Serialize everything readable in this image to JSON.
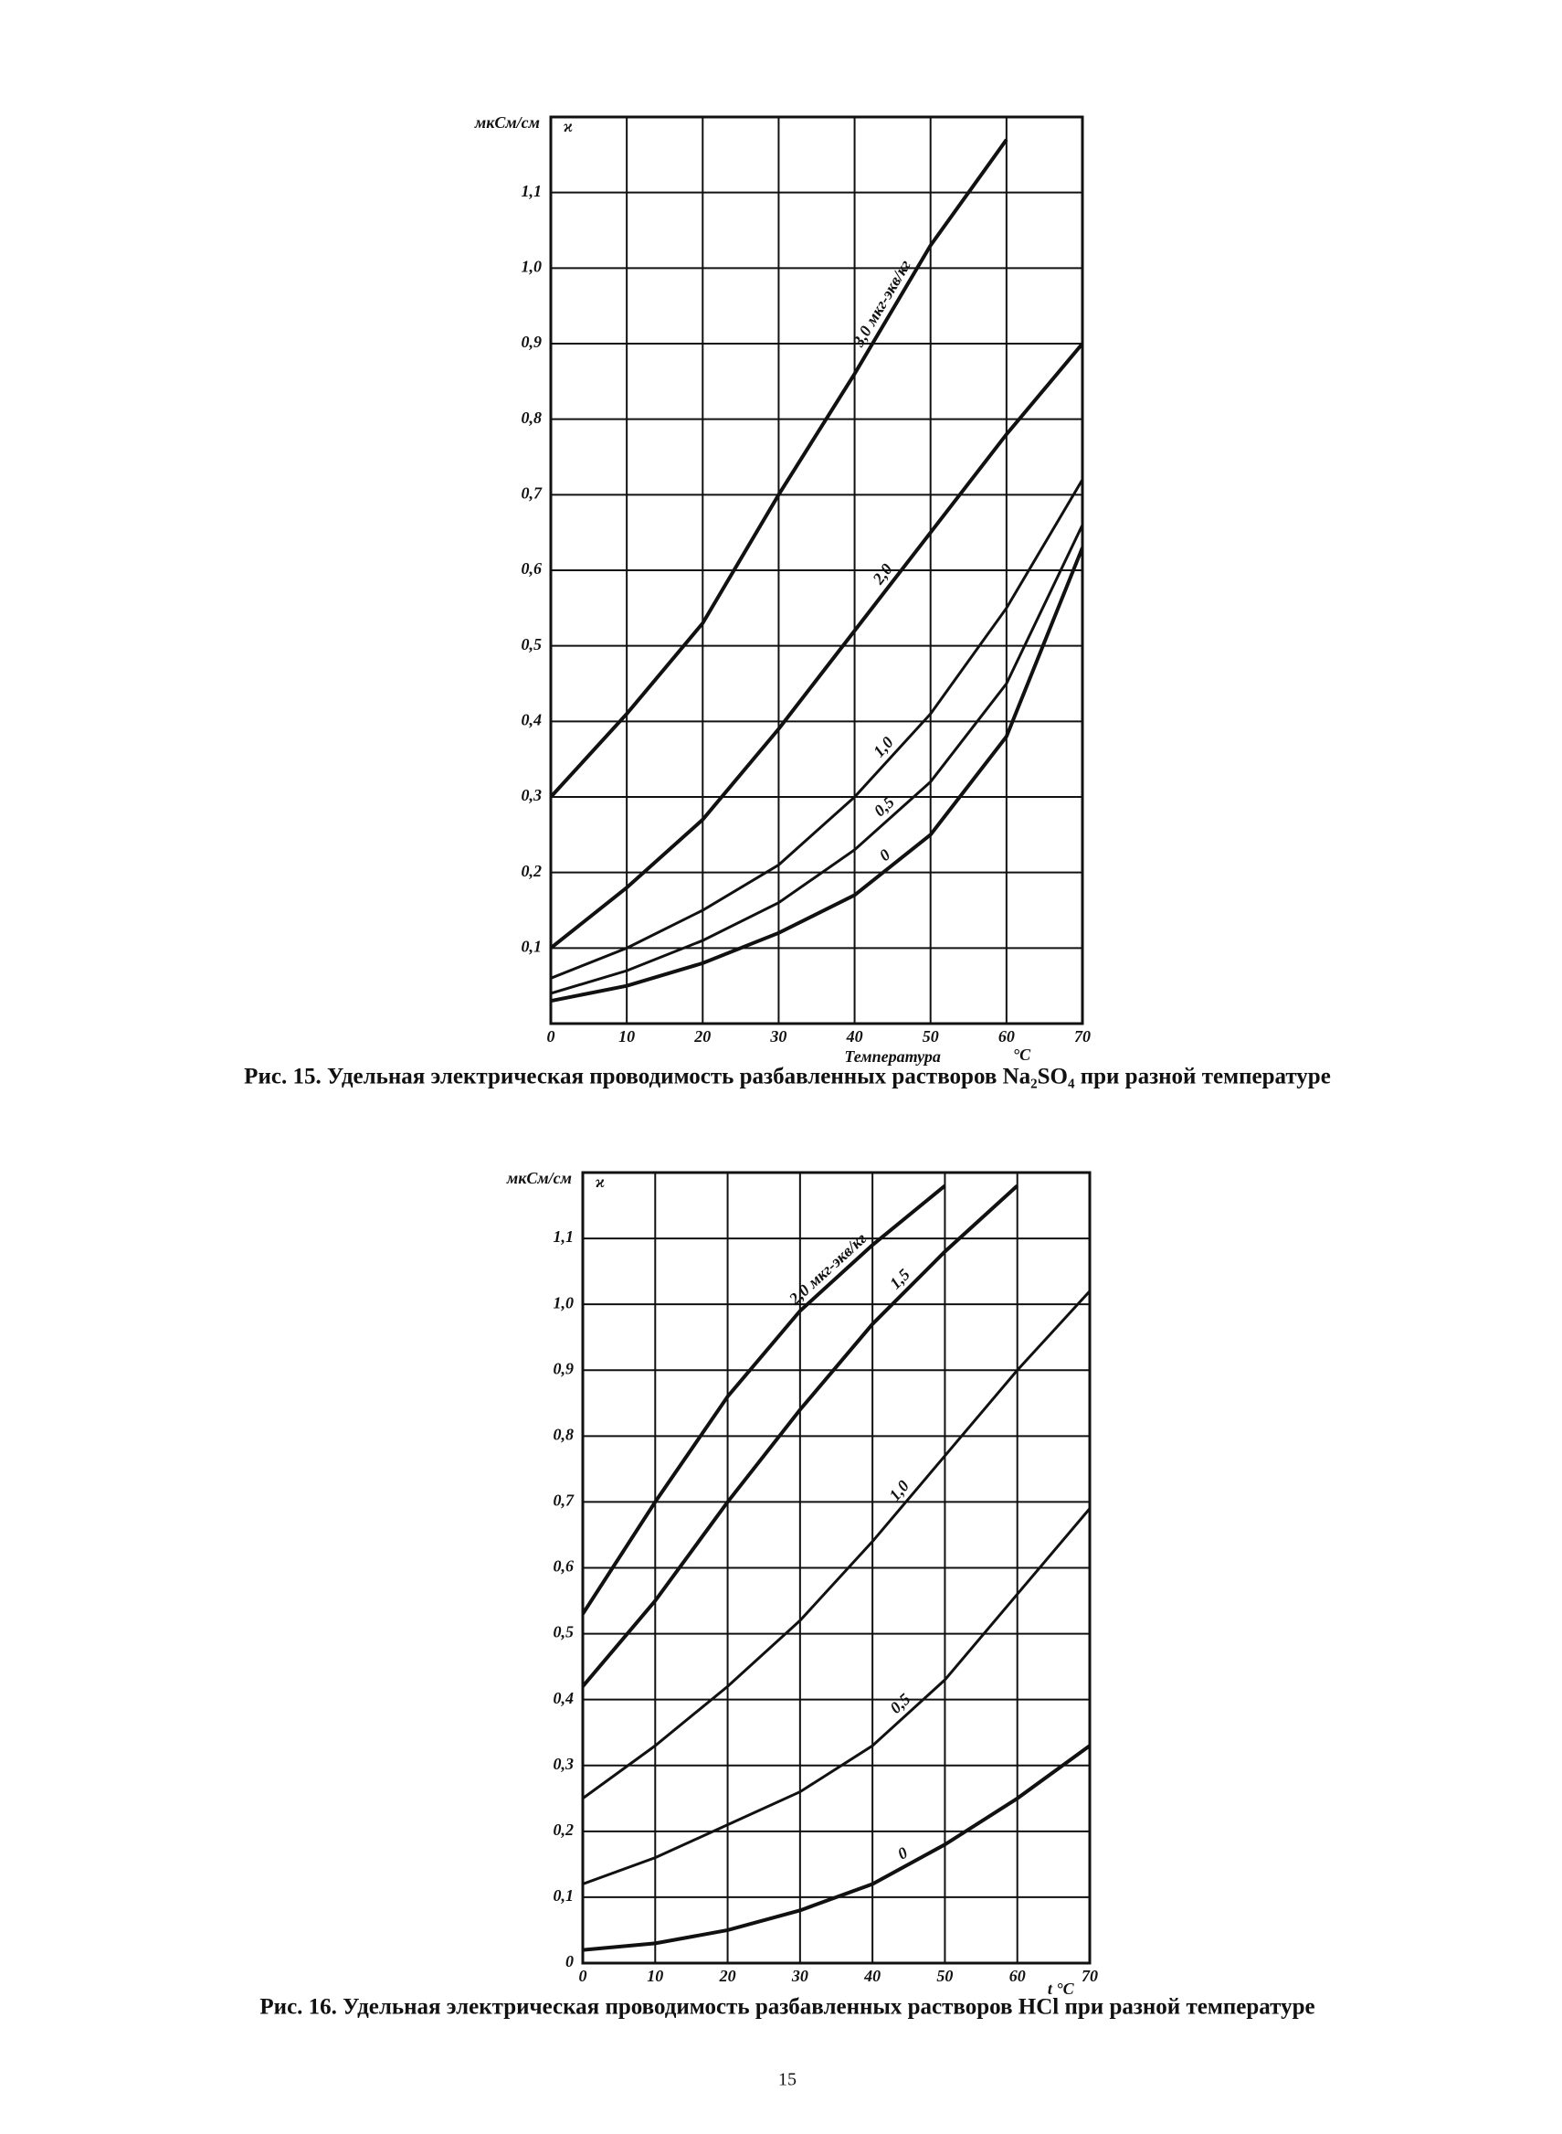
{
  "chart_data": [
    {
      "type": "line",
      "title": "Рис. 15. Удельная электрическая проводимость разбавленных растворов Na₂SO₄ при разной температуре",
      "y_unit": "мкСм/см",
      "y_symbol": "ϰ",
      "x_label": "Температура",
      "x_unit": "°C",
      "x": [
        0,
        10,
        20,
        30,
        40,
        50,
        60,
        70
      ],
      "series": [
        {
          "name": "3,0 мкг-экв/кг",
          "color": "#111111",
          "values": [
            0.3,
            0.41,
            0.53,
            0.7,
            0.86,
            1.03,
            1.17,
            null
          ]
        },
        {
          "name": "2,0",
          "color": "#111111",
          "values": [
            0.1,
            0.18,
            0.27,
            0.39,
            0.52,
            0.65,
            0.78,
            0.9
          ]
        },
        {
          "name": "1,0",
          "color": "#111111",
          "values": [
            0.06,
            0.1,
            0.15,
            0.21,
            0.3,
            0.41,
            0.55,
            0.72
          ]
        },
        {
          "name": "0,5",
          "color": "#111111",
          "values": [
            0.04,
            0.07,
            0.11,
            0.16,
            0.23,
            0.32,
            0.45,
            0.66
          ]
        },
        {
          "name": "0",
          "color": "#111111",
          "values": [
            0.03,
            0.05,
            0.08,
            0.12,
            0.17,
            0.25,
            0.38,
            0.63
          ]
        }
      ],
      "xlim": [
        0,
        70
      ],
      "xticks": [
        0,
        10,
        20,
        30,
        40,
        50,
        60,
        70
      ],
      "ylim": [
        0,
        1.2
      ],
      "yticks": [
        {
          "value": 0.1,
          "label": "0,1"
        },
        {
          "value": 0.2,
          "label": "0,2"
        },
        {
          "value": 0.3,
          "label": "0,3"
        },
        {
          "value": 0.4,
          "label": "0,4"
        },
        {
          "value": 0.5,
          "label": "0,5"
        },
        {
          "value": 0.6,
          "label": "0,6"
        },
        {
          "value": 0.7,
          "label": "0,7"
        },
        {
          "value": 0.8,
          "label": "0,8"
        },
        {
          "value": 0.9,
          "label": "0,9"
        },
        {
          "value": 1.0,
          "label": "1,0"
        },
        {
          "value": 1.1,
          "label": "1,1"
        }
      ],
      "grid": true
    },
    {
      "type": "line",
      "title": "Рис. 16. Удельная электрическая проводимость разбавленных растворов HCl при разной температуре",
      "y_unit": "мкСм/см",
      "y_symbol": "ϰ",
      "x_label": "t °C",
      "x": [
        0,
        10,
        20,
        30,
        40,
        50,
        60,
        70
      ],
      "series": [
        {
          "name": "2,0 мкг-экв/кг",
          "color": "#111111",
          "values": [
            0.53,
            0.7,
            0.86,
            0.99,
            1.09,
            1.18,
            null,
            null
          ]
        },
        {
          "name": "1,5",
          "color": "#111111",
          "values": [
            0.42,
            0.55,
            0.7,
            0.84,
            0.97,
            1.08,
            1.18,
            null
          ]
        },
        {
          "name": "1,0",
          "color": "#111111",
          "values": [
            0.25,
            0.33,
            0.42,
            0.52,
            0.64,
            0.77,
            0.9,
            1.02
          ]
        },
        {
          "name": "0,5",
          "color": "#111111",
          "values": [
            0.12,
            0.16,
            0.21,
            0.26,
            0.33,
            0.43,
            0.56,
            0.69
          ]
        },
        {
          "name": "0",
          "color": "#111111",
          "values": [
            0.02,
            0.03,
            0.05,
            0.08,
            0.12,
            0.18,
            0.25,
            0.33
          ]
        }
      ],
      "xlim": [
        0,
        70
      ],
      "xticks": [
        0,
        10,
        20,
        30,
        40,
        50,
        60,
        70
      ],
      "ylim": [
        0,
        1.2
      ],
      "yticks": [
        0,
        {
          "value": 0.1,
          "label": "0,1"
        },
        {
          "value": 0.2,
          "label": "0,2"
        },
        {
          "value": 0.3,
          "label": "0,3"
        },
        {
          "value": 0.4,
          "label": "0,4"
        },
        {
          "value": 0.5,
          "label": "0,5"
        },
        {
          "value": 0.6,
          "label": "0,6"
        },
        {
          "value": 0.7,
          "label": "0,7"
        },
        {
          "value": 0.8,
          "label": "0,8"
        },
        {
          "value": 0.9,
          "label": "0,9"
        },
        {
          "value": 1.0,
          "label": "1,0"
        },
        {
          "value": 1.1,
          "label": "1,1"
        }
      ],
      "grid": true
    }
  ],
  "page_number": "15"
}
